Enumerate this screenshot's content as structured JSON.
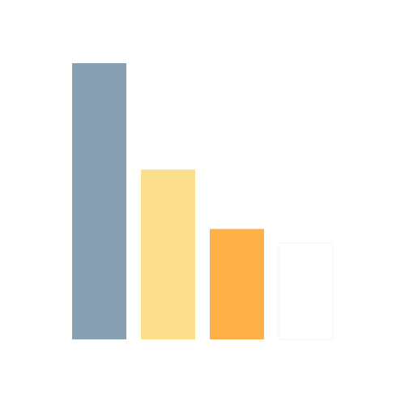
{
  "chart_data": {
    "type": "bar",
    "title": "",
    "xlabel": "",
    "ylabel": "",
    "categories": [
      "",
      "",
      "",
      ""
    ],
    "values": [
      100,
      61.5,
      40,
      35
    ],
    "colors": [
      "#87a0b2",
      "#fcdf8c",
      "#ffb047",
      "#ffffff"
    ],
    "bar_outline_last": "#f4f4f4",
    "ylim": [
      0,
      100
    ],
    "grid": false,
    "legend": "none"
  }
}
